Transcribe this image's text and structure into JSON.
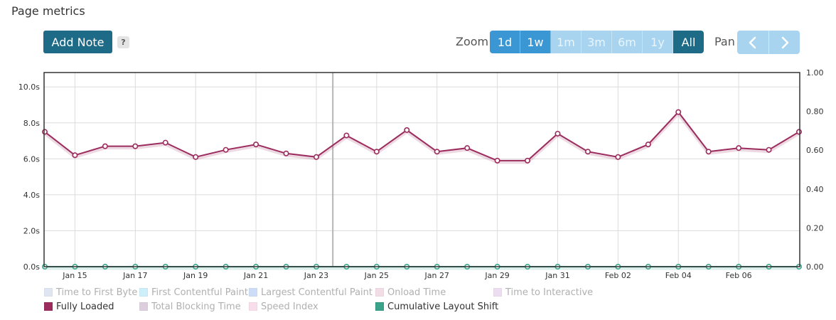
{
  "header": {
    "title": "Page metrics",
    "add_note_label": "Add Note",
    "help_label": "?",
    "zoom_label": "Zoom",
    "zoom_options": [
      {
        "label": "1d",
        "state": "enabled"
      },
      {
        "label": "1w",
        "state": "enabled"
      },
      {
        "label": "1m",
        "state": "disabled"
      },
      {
        "label": "3m",
        "state": "disabled"
      },
      {
        "label": "6m",
        "state": "disabled"
      },
      {
        "label": "1y",
        "state": "disabled"
      },
      {
        "label": "All",
        "state": "active"
      }
    ],
    "pan_label": "Pan",
    "pan_icons": [
      "chevron-left-icon",
      "chevron-right-icon"
    ]
  },
  "colors": {
    "fully_loaded": "#9c2c5e",
    "cls": "#3aa38a",
    "grid": "#dcdcdc",
    "accent": "#1e6b87"
  },
  "chart_data": {
    "type": "line",
    "x": [
      "Jan 14",
      "Jan 15",
      "Jan 16",
      "Jan 17",
      "Jan 18",
      "Jan 19",
      "Jan 20",
      "Jan 21",
      "Jan 22",
      "Jan 23",
      "Jan 24",
      "Jan 25",
      "Jan 26",
      "Jan 27",
      "Jan 28",
      "Jan 29",
      "Jan 30",
      "Jan 31",
      "Feb 01",
      "Feb 02",
      "Feb 03",
      "Feb 04",
      "Feb 05",
      "Feb 06",
      "Feb 07",
      "Feb 08"
    ],
    "x_tick_labels": [
      "Jan 15",
      "Jan 17",
      "Jan 19",
      "Jan 21",
      "Jan 23",
      "Jan 25",
      "Jan 27",
      "Jan 29",
      "Jan 31",
      "Feb 02",
      "Feb 04",
      "Feb 06"
    ],
    "y_left_ticks": [
      "0.0s",
      "2.0s",
      "4.0s",
      "6.0s",
      "8.0s",
      "10.0s"
    ],
    "y_left_range": [
      0,
      10.8
    ],
    "y_right_ticks": [
      "0.00",
      "0.20",
      "0.40",
      "0.60",
      "0.80",
      "1.00"
    ],
    "y_right_range": [
      0,
      1.0
    ],
    "grid": true,
    "legend_position": "bottom-left",
    "marker_date": "Jan 24",
    "series": [
      {
        "name": "Fully Loaded",
        "axis": "left",
        "color": "#9c2c5e",
        "values": [
          7.5,
          6.2,
          6.7,
          6.7,
          6.9,
          6.1,
          6.5,
          6.8,
          6.3,
          6.1,
          7.3,
          6.4,
          7.6,
          6.4,
          6.6,
          5.9,
          5.9,
          7.4,
          6.4,
          6.1,
          6.8,
          8.6,
          6.4,
          6.6,
          6.5,
          7.5
        ]
      },
      {
        "name": "Cumulative Layout Shift",
        "axis": "right",
        "color": "#3aa38a",
        "values": [
          0,
          0,
          0,
          0,
          0,
          0,
          0,
          0,
          0,
          0,
          0,
          0,
          0,
          0,
          0,
          0,
          0,
          0,
          0,
          0,
          0,
          0,
          0,
          0,
          0,
          0
        ]
      }
    ],
    "legend": [
      {
        "name": "Time to First Byte",
        "color": "#b9c9e2",
        "shown": false
      },
      {
        "name": "First Contentful Paint",
        "color": "#8fdcf5",
        "shown": false
      },
      {
        "name": "Largest Contentful Paint",
        "color": "#93b5ee",
        "shown": false
      },
      {
        "name": "Onload Time",
        "color": "#e4b4c8",
        "shown": false
      },
      {
        "name": "Time to Interactive",
        "color": "#d9b6e0",
        "shown": false
      },
      {
        "name": "Fully Loaded",
        "color": "#9c2c5e",
        "shown": true
      },
      {
        "name": "Total Blocking Time",
        "color": "#b494b8",
        "shown": false
      },
      {
        "name": "Speed Index",
        "color": "#f6b5d2",
        "shown": false
      },
      {
        "name": "Cumulative Layout Shift",
        "color": "#3aa38a",
        "shown": true
      }
    ]
  }
}
